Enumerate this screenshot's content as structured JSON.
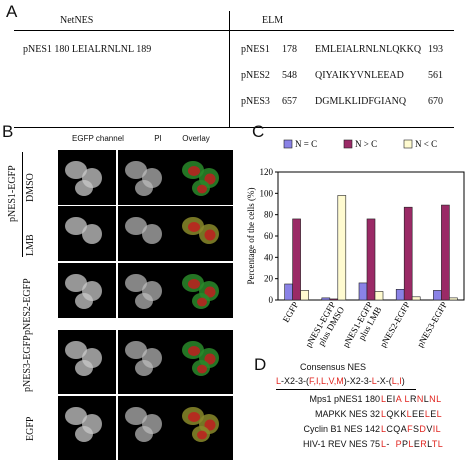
{
  "panels": {
    "A": {
      "letter": "A",
      "header_left": "NetNES",
      "header_right": "ELM",
      "netnes_row": "pNES1 180 LEIALRNLNL 189",
      "elm_rows": [
        {
          "name": "pNES1",
          "start": "178",
          "seq": "EMLEIALRNLNLQKKQ",
          "end": "193"
        },
        {
          "name": "pNES2",
          "start": "548",
          "seq": "QIYAIKYVNLEEAD",
          "end": "561"
        },
        {
          "name": "pNES3",
          "start": "657",
          "seq": "DGMLKLIDFGIANQ",
          "end": "670"
        }
      ]
    },
    "B": {
      "letter": "B",
      "col_headers": [
        "EGFP channel",
        "PI",
        "Overlay"
      ],
      "row_labels": [
        "DMSO",
        "LMB",
        "pNES2-EGFP",
        "pNES3-EGFP",
        "EGFP"
      ],
      "group_label": "pNES1-EGFP"
    },
    "C": {
      "letter": "C",
      "colors": {
        "N = C": "#8a82e6",
        "N > C": "#9a2a66",
        "N < C": "#fffbd0"
      }
    },
    "D": {
      "letter": "D",
      "title": "Consensus NES",
      "consensus": [
        {
          "t": "L",
          "red": true
        },
        {
          "t": "-X2-3-(",
          "red": false
        },
        {
          "t": "F,I,L,V,M",
          "red": true
        },
        {
          "t": ")-X2-3-",
          "red": false
        },
        {
          "t": "L",
          "red": true
        },
        {
          "t": "-X-(",
          "red": false
        },
        {
          "t": "L,I",
          "red": true
        },
        {
          "t": ")",
          "red": false
        }
      ],
      "rows": [
        {
          "label": "Mps1 pNES1 180",
          "seq": [
            {
              "t": "L",
              "r": true
            },
            {
              "t": "EI",
              "r": false
            },
            {
              "t": "A",
              "r": true
            },
            {
              "t": " ",
              "r": false
            },
            {
              "t": "L",
              "r": true
            },
            {
              "t": "R",
              "r": false
            },
            {
              "t": "N",
              "r": true
            },
            {
              "t": "L",
              "r": false
            },
            {
              "t": "N",
              "r": true
            },
            {
              "t": "L",
              "r": true
            }
          ]
        },
        {
          "label": "MAPKK NES  32",
          "seq": [
            {
              "t": "L",
              "r": true
            },
            {
              "t": "QKK",
              "r": false
            },
            {
              "t": "L",
              "r": true
            },
            {
              "t": "EE",
              "r": false
            },
            {
              "t": "L",
              "r": true
            },
            {
              "t": "E",
              "r": false
            },
            {
              "t": "L",
              "r": true
            }
          ]
        },
        {
          "label": "Cyclin B1 NES 142",
          "seq": [
            {
              "t": "L",
              "r": true
            },
            {
              "t": "CQA",
              "r": false
            },
            {
              "t": "F",
              "r": true
            },
            {
              "t": "S",
              "r": false
            },
            {
              "t": "D",
              "r": true
            },
            {
              "t": "V",
              "r": false
            },
            {
              "t": "I",
              "r": true
            },
            {
              "t": "L",
              "r": true
            }
          ]
        },
        {
          "label": "HIV-1 REV NES  75",
          "seq": [
            {
              "t": "L",
              "r": true
            },
            {
              "t": "-  ",
              "r": false
            },
            {
              "t": "P",
              "r": true
            },
            {
              "t": "P",
              "r": false
            },
            {
              "t": "L",
              "r": true
            },
            {
              "t": "E",
              "r": false
            },
            {
              "t": "R",
              "r": true
            },
            {
              "t": "L",
              "r": false
            },
            {
              "t": "T",
              "r": true
            },
            {
              "t": "L",
              "r": true
            }
          ]
        }
      ]
    }
  },
  "chart_data": {
    "type": "bar",
    "title": "",
    "xlabel": "",
    "ylabel": "Percentage of the cells (%)",
    "ylim": [
      0,
      120
    ],
    "yticks": [
      0,
      20,
      40,
      60,
      80,
      100,
      120
    ],
    "categories": [
      "EGFP",
      "pNES1-EGFP plus DMSO",
      "pNES1-EGFP plus LMB",
      "pNES2-EGFP",
      "pNES3-EGFP"
    ],
    "category_lines": [
      [
        "EGFP"
      ],
      [
        "pNES1-EGFP",
        "plus DMSO"
      ],
      [
        "pNES1-EGFP",
        "plus LMB"
      ],
      [
        "pNES2-EGFP"
      ],
      [
        "pNES3-EGFP"
      ]
    ],
    "series": [
      {
        "name": "N = C",
        "values": [
          15,
          2,
          16,
          10,
          9
        ]
      },
      {
        "name": "N > C",
        "values": [
          76,
          1,
          76,
          87,
          89
        ]
      },
      {
        "name": "N < C",
        "values": [
          9,
          98,
          8,
          3,
          2
        ]
      }
    ],
    "legend": "top"
  }
}
